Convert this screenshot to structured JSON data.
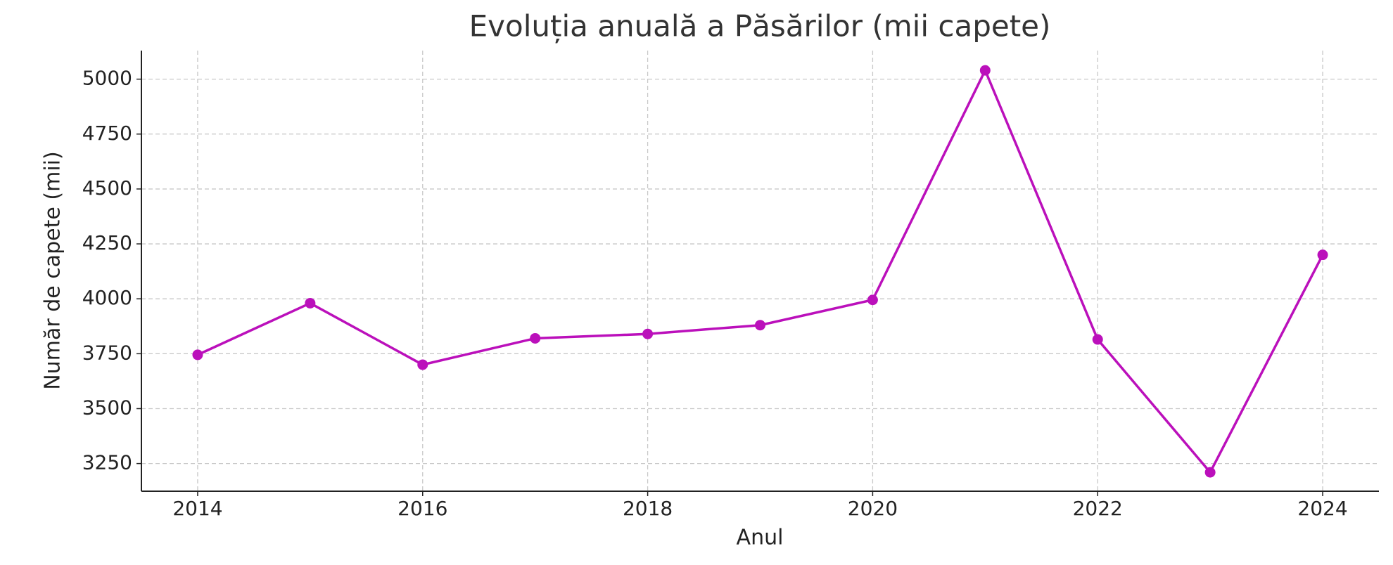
{
  "chart_data": {
    "type": "line",
    "title": "Evoluția anuală a Păsărilor (mii capete)",
    "x_label": "Anul",
    "y_label": "Număr de capete (mii)",
    "x": [
      2014,
      2015,
      2016,
      2017,
      2018,
      2019,
      2020,
      2021,
      2022,
      2023,
      2024
    ],
    "series": [
      {
        "name": "Păsări",
        "color": "#bb10bb",
        "values": [
          3745,
          3980,
          3700,
          3820,
          3840,
          3880,
          3995,
          5040,
          3815,
          3210,
          4200
        ]
      }
    ],
    "xlim": [
      2013.5,
      2024.5
    ],
    "xticks": [
      2014,
      2016,
      2018,
      2020,
      2022,
      2024
    ],
    "ylim": [
      3124,
      5130
    ],
    "yticks": [
      3250,
      3500,
      3750,
      4000,
      4250,
      4500,
      4750,
      5000
    ],
    "grid": true
  }
}
